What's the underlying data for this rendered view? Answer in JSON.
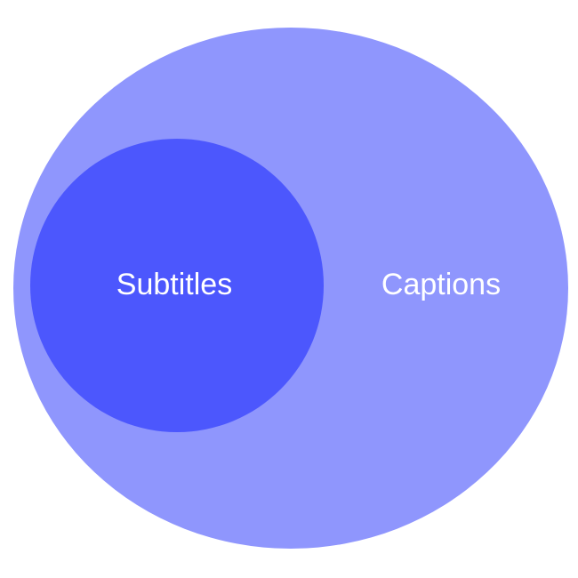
{
  "diagram": {
    "type": "nested-euler",
    "colors": {
      "background": "#ffffff",
      "outer_fill": "#8f96fd",
      "inner_fill": "#4c57fd",
      "label_color": "#ffffff"
    },
    "outer_set": {
      "label": "Captions"
    },
    "inner_set": {
      "label": "Subtitles"
    },
    "relationship": "Subtitles is a subset of Captions"
  }
}
